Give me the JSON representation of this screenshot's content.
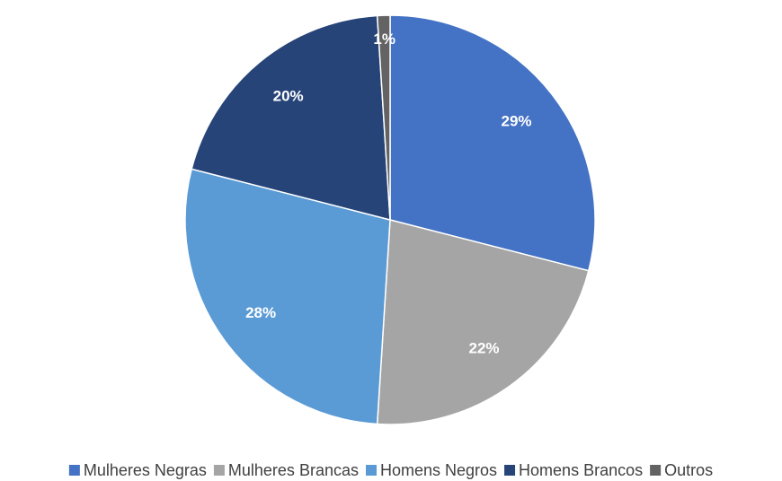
{
  "chart_data": {
    "type": "pie",
    "categories": [
      "Mulheres Negras",
      "Mulheres Brancas",
      "Homens Negros",
      "Homens Brancos",
      "Outros"
    ],
    "values": [
      29,
      22,
      28,
      20,
      1
    ],
    "value_labels": [
      "29%",
      "22%",
      "28%",
      "20%",
      "1%"
    ],
    "colors": [
      "#4472c4",
      "#a5a5a5",
      "#5b9bd5",
      "#264478",
      "#636363"
    ],
    "legend": "bottom"
  }
}
